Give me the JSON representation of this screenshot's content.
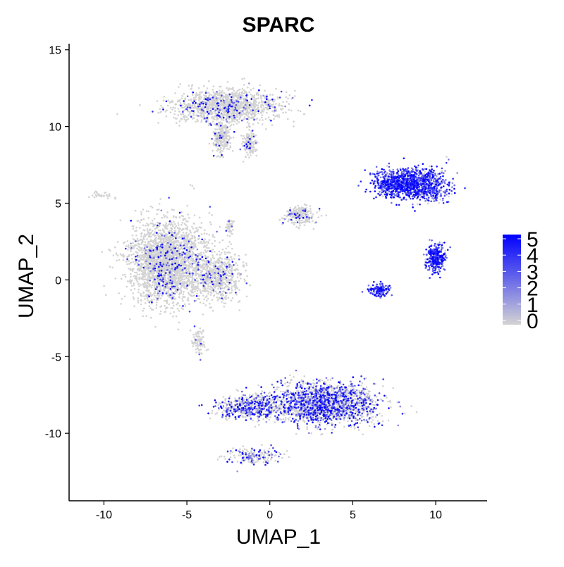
{
  "chart_data": {
    "type": "scatter",
    "title": "SPARC",
    "xlabel": "UMAP_1",
    "ylabel": "UMAP_2",
    "xlim": [
      -12.1,
      13.1
    ],
    "ylim": [
      -14.4,
      15.4
    ],
    "x_ticks": [
      -10,
      -5,
      0,
      5,
      10
    ],
    "y_ticks": [
      -10,
      -5,
      0,
      5,
      10,
      15
    ],
    "grid": false,
    "legend": {
      "position": "right",
      "type": "colorbar",
      "range": [
        0,
        5
      ],
      "ticks": [
        0,
        1,
        2,
        3,
        4,
        5
      ],
      "low_color": "#d3d3d3",
      "high_color": "#0000ff"
    },
    "clusters": [
      {
        "cx": -2.6,
        "cy": 11.3,
        "sx": 2.9,
        "sy": 1.0,
        "n": 1300,
        "expr": 0.12
      },
      {
        "cx": -2.9,
        "cy": 9.3,
        "sx": 0.5,
        "sy": 1.0,
        "n": 250,
        "expr": 0.1
      },
      {
        "cx": -1.2,
        "cy": 8.9,
        "sx": 0.35,
        "sy": 0.7,
        "n": 150,
        "expr": 0.1
      },
      {
        "cx": -6.2,
        "cy": 1.2,
        "sx": 2.0,
        "sy": 2.4,
        "n": 2600,
        "expr": 0.08
      },
      {
        "cx": -3.2,
        "cy": 0.3,
        "sx": 1.4,
        "sy": 1.5,
        "n": 650,
        "expr": 0.08
      },
      {
        "cx": 1.8,
        "cy": 4.2,
        "sx": 0.8,
        "sy": 0.6,
        "n": 220,
        "expr": 0.1
      },
      {
        "cx": -10.0,
        "cy": 5.5,
        "sx": 0.8,
        "sy": 0.2,
        "n": 30,
        "expr": 0.0
      },
      {
        "cx": -2.4,
        "cy": 3.5,
        "sx": 0.2,
        "sy": 0.5,
        "n": 50,
        "expr": 0.05
      },
      {
        "cx": -4.3,
        "cy": -4.0,
        "sx": 0.4,
        "sy": 0.8,
        "n": 90,
        "expr": 0.05
      },
      {
        "cx": 3.3,
        "cy": -8.1,
        "sx": 2.8,
        "sy": 1.2,
        "n": 2000,
        "expr": 0.4
      },
      {
        "cx": -1.2,
        "cy": -8.3,
        "sx": 1.8,
        "sy": 0.7,
        "n": 600,
        "expr": 0.4
      },
      {
        "cx": -1.0,
        "cy": -11.5,
        "sx": 1.4,
        "sy": 0.5,
        "n": 200,
        "expr": 0.3
      },
      {
        "cx": 7.8,
        "cy": 6.3,
        "sx": 1.4,
        "sy": 0.8,
        "n": 750,
        "expr": 0.95
      },
      {
        "cx": 9.4,
        "cy": 6.2,
        "sx": 1.2,
        "sy": 1.0,
        "n": 550,
        "expr": 0.8
      },
      {
        "cx": 10.0,
        "cy": 1.4,
        "sx": 0.5,
        "sy": 0.8,
        "n": 320,
        "expr": 0.92
      },
      {
        "cx": 6.6,
        "cy": -0.7,
        "sx": 0.6,
        "sy": 0.4,
        "n": 140,
        "expr": 0.9
      }
    ]
  }
}
